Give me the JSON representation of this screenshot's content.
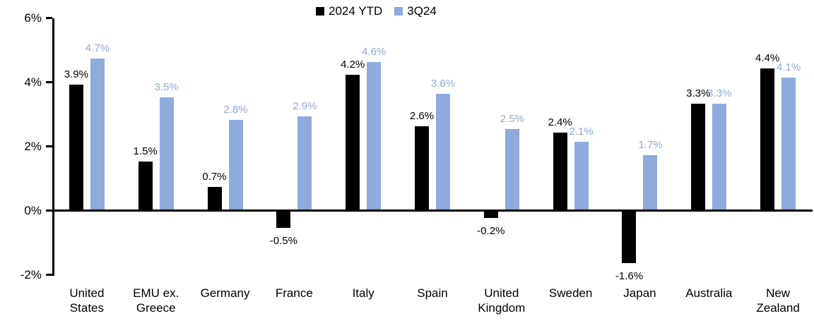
{
  "chart_data": {
    "type": "bar",
    "title": "",
    "xlabel": "",
    "ylabel": "",
    "ylim": [
      -2,
      6
    ],
    "grid": false,
    "legend_position": "top-center",
    "categories": [
      "United States",
      "EMU ex. Greece",
      "Germany",
      "France",
      "Italy",
      "Spain",
      "United Kingdom",
      "Sweden",
      "Japan",
      "Australia",
      "New Zealand"
    ],
    "series": [
      {
        "name": "2024 YTD",
        "color": "#000000",
        "values": [
          3.9,
          1.5,
          0.7,
          -0.5,
          4.2,
          2.6,
          -0.2,
          2.4,
          -1.6,
          3.3,
          4.4
        ],
        "labels": [
          "3.9%",
          "1.5%",
          "0.7%",
          "-0.5%",
          "4.2%",
          "2.6%",
          "-0.2%",
          "2.4%",
          "-1.6%",
          "3.3%",
          "4.4%"
        ]
      },
      {
        "name": "3Q24",
        "color": "#8FAADC",
        "values": [
          4.7,
          3.5,
          2.8,
          2.9,
          4.6,
          3.6,
          2.5,
          2.1,
          1.7,
          3.3,
          4.1
        ],
        "labels": [
          "4.7%",
          "3.5%",
          "2.8%",
          "2.9%",
          "4.6%",
          "3.6%",
          "2.5%",
          "2.1%",
          "1.7%",
          "3.3%",
          "4.1%"
        ]
      }
    ],
    "yticks": {
      "values": [
        6,
        4,
        2,
        0,
        -2
      ],
      "labels": [
        "6%",
        "4%",
        "2%",
        "0%",
        "-2%"
      ]
    },
    "axis_color": "#000000",
    "background_color": "#FFFFFF"
  }
}
